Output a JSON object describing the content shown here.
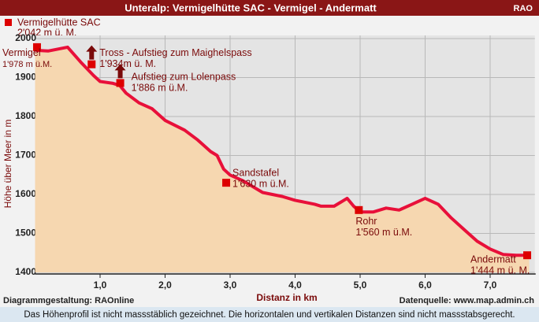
{
  "chart_data": {
    "type": "area-line",
    "title": "Unteralp: Vermigelhütte SAC -  Vermigel  - Andermatt",
    "brand": "RAO",
    "top_marker": {
      "label": "Vermigelhütte SAC",
      "sublabel": "2'042 m ü. M."
    },
    "y_label": "Höhe über Meer in m",
    "x_label": "Distanz in km",
    "credit": "Diagrammgestaltung: RAOnline",
    "source": "Datenquelle: www.map.admin.ch",
    "footer_note": "Das Höhenprofil ist nicht massstäblich gezeichnet. Die horizontalen und vertikalen Distanzen sind nicht massstabsgerecht.",
    "x": [
      0.0,
      0.2,
      0.5,
      0.7,
      0.9,
      1.0,
      1.2,
      1.3,
      1.4,
      1.6,
      1.8,
      2.0,
      2.3,
      2.5,
      2.7,
      2.8,
      2.9,
      3.0,
      3.2,
      3.5,
      3.8,
      4.0,
      4.3,
      4.4,
      4.6,
      4.7,
      4.8,
      4.9,
      5.0,
      5.2,
      5.4,
      5.6,
      5.8,
      6.0,
      6.2,
      6.4,
      6.6,
      6.8,
      7.0,
      7.2,
      7.4,
      7.6
    ],
    "series": [
      {
        "name": "Höhenprofil",
        "color": "#e8103a",
        "fill": "#f6d7b0",
        "values": [
          1970,
          1968,
          1978,
          1940,
          1905,
          1890,
          1885,
          1880,
          1860,
          1835,
          1820,
          1790,
          1765,
          1740,
          1710,
          1700,
          1665,
          1650,
          1635,
          1605,
          1595,
          1585,
          1575,
          1570,
          1570,
          1580,
          1590,
          1570,
          1555,
          1555,
          1565,
          1560,
          1575,
          1590,
          1575,
          1540,
          1510,
          1480,
          1460,
          1446,
          1444,
          1444
        ]
      }
    ],
    "annotations": [
      {
        "x": 0.03,
        "y": 1978,
        "label": "Vermigel",
        "sublabel": "1'978 m ü.M."
      },
      {
        "x": 0.87,
        "y": 1934,
        "label": "Tross - Aufstieg zum Maighelspass",
        "sublabel": "1'934m ü. M."
      },
      {
        "x": 1.31,
        "y": 1886,
        "label": "Aufstieg zum Lolenpass",
        "sublabel": "1'886 m ü.M."
      },
      {
        "x": 2.94,
        "y": 1630,
        "label": "Sandstafel",
        "sublabel": "1'630 m ü.M."
      },
      {
        "x": 4.98,
        "y": 1560,
        "label": "Rohr",
        "sublabel": "1'560 m ü.M."
      },
      {
        "x": 7.57,
        "y": 1444,
        "label": "Andermatt",
        "sublabel": "1'444 m ü. M."
      }
    ],
    "xlim": [
      0,
      7.7
    ],
    "ylim": [
      1400,
      2000
    ],
    "xticks": [
      {
        "value": 1,
        "label": "1,0"
      },
      {
        "value": 2,
        "label": "2,0"
      },
      {
        "value": 3,
        "label": "3,0"
      },
      {
        "value": 4,
        "label": "4,0"
      },
      {
        "value": 5,
        "label": "5,0"
      },
      {
        "value": 6,
        "label": "6,0"
      },
      {
        "value": 7,
        "label": "7,0"
      }
    ],
    "yticks": [
      1400,
      1500,
      1600,
      1700,
      1800,
      1900,
      2000
    ],
    "grid": true
  }
}
